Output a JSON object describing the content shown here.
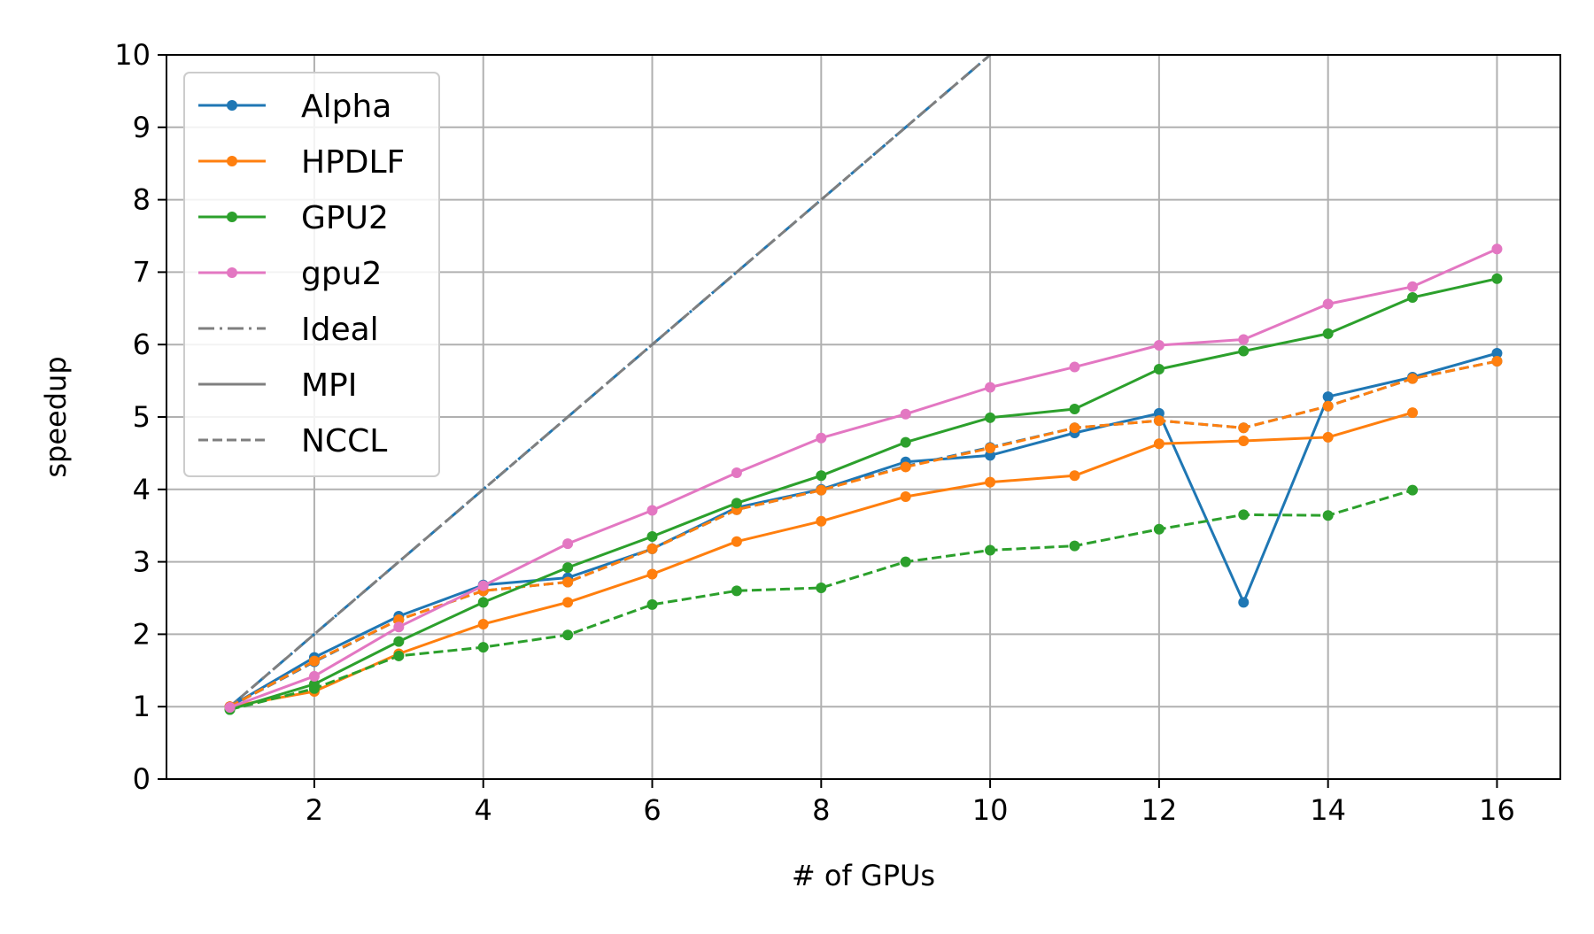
{
  "chart_data": {
    "type": "line",
    "title": "",
    "xlabel": "# of GPUs",
    "ylabel": "speedup",
    "xlim": [
      0.25,
      16.75
    ],
    "ylim": [
      0,
      10
    ],
    "xticks": [
      2,
      4,
      6,
      8,
      10,
      12,
      14,
      16
    ],
    "yticks": [
      0,
      1,
      2,
      3,
      4,
      5,
      6,
      7,
      8,
      9,
      10
    ],
    "grid": true,
    "legend_placement": "top-left",
    "colors": {
      "Alpha": "#1f77b4",
      "HPDLF": "#ff7f0e",
      "GPU2": "#2ca02c",
      "gpu2": "#e377c2",
      "reference": "#7f7f7f"
    },
    "legend": [
      {
        "name": "Alpha",
        "color": "#1f77b4",
        "style": "solid",
        "marker": true
      },
      {
        "name": "HPDLF",
        "color": "#ff7f0e",
        "style": "solid",
        "marker": true
      },
      {
        "name": "GPU2",
        "color": "#2ca02c",
        "style": "solid",
        "marker": true
      },
      {
        "name": "gpu2",
        "color": "#e377c2",
        "style": "solid",
        "marker": true
      },
      {
        "name": "Ideal",
        "color": "#7f7f7f",
        "style": "dashdot",
        "marker": false
      },
      {
        "name": "MPI",
        "color": "#7f7f7f",
        "style": "solid",
        "marker": false
      },
      {
        "name": "NCCL",
        "color": "#7f7f7f",
        "style": "dashed",
        "marker": false
      }
    ],
    "series": [
      {
        "name": "Ideal",
        "color": "#1f77b4",
        "style": "dashdot",
        "marker": false,
        "x": [
          1,
          10
        ],
        "y": [
          1,
          10
        ]
      },
      {
        "name": "Ideal",
        "color": "#7f7f7f",
        "style": "dashed",
        "marker": false,
        "x": [
          1,
          10
        ],
        "y": [
          1,
          10
        ]
      },
      {
        "name": "Alpha",
        "comm": "MPI",
        "color": "#1f77b4",
        "style": "solid",
        "marker": true,
        "x": [
          1,
          2,
          3,
          4,
          5,
          6,
          7,
          8,
          9,
          10,
          11,
          12,
          13,
          14,
          15,
          16
        ],
        "y": [
          1.0,
          1.68,
          2.25,
          2.68,
          2.78,
          3.18,
          3.75,
          4.0,
          4.38,
          4.47,
          4.78,
          5.05,
          2.44,
          5.28,
          5.55,
          5.88
        ]
      },
      {
        "name": "Alpha",
        "comm": "NCCL",
        "color": "#1f77b4",
        "style": "dashed",
        "marker": true,
        "x": [
          1,
          2,
          3,
          4,
          5,
          6,
          7,
          8,
          9,
          10,
          11,
          12,
          13,
          14,
          15,
          16
        ],
        "y": [
          1.0,
          1.62,
          2.2,
          2.6,
          2.72,
          3.18,
          3.72,
          3.99,
          4.32,
          4.58,
          4.85,
          4.95,
          4.85,
          5.15,
          5.53,
          5.77
        ]
      },
      {
        "name": "HPDLF",
        "comm": "MPI",
        "color": "#ff7f0e",
        "style": "solid",
        "marker": true,
        "x": [
          1,
          2,
          3,
          4,
          5,
          6,
          7,
          8,
          9,
          10,
          11,
          12,
          13,
          14,
          15
        ],
        "y": [
          1.0,
          1.21,
          1.73,
          2.14,
          2.44,
          2.83,
          3.28,
          3.56,
          3.9,
          4.1,
          4.19,
          4.63,
          4.67,
          4.72,
          5.06
        ]
      },
      {
        "name": "HPDLF",
        "comm": "NCCL",
        "color": "#ff7f0e",
        "style": "dashed",
        "marker": true,
        "x": [
          1,
          2,
          3,
          4,
          5,
          6,
          7,
          8,
          9,
          10,
          11,
          12,
          13,
          14,
          15,
          16
        ],
        "y": [
          1.0,
          1.63,
          2.2,
          2.6,
          2.72,
          3.18,
          3.72,
          3.99,
          4.31,
          4.57,
          4.85,
          4.95,
          4.85,
          5.15,
          5.53,
          5.77
        ]
      },
      {
        "name": "GPU2",
        "comm": "MPI",
        "color": "#2ca02c",
        "style": "solid",
        "marker": true,
        "x": [
          1,
          2,
          3,
          4,
          5,
          6,
          7,
          8,
          9,
          10,
          11,
          12,
          13,
          14,
          15,
          16
        ],
        "y": [
          0.96,
          1.31,
          1.9,
          2.44,
          2.92,
          3.35,
          3.81,
          4.19,
          4.65,
          4.99,
          5.11,
          5.66,
          5.91,
          6.15,
          6.65,
          6.91
        ]
      },
      {
        "name": "GPU2",
        "comm": "NCCL",
        "color": "#2ca02c",
        "style": "dashed",
        "marker": true,
        "x": [
          1,
          2,
          3,
          4,
          5,
          6,
          7,
          8,
          9,
          10,
          11,
          12,
          13,
          14,
          15
        ],
        "y": [
          0.96,
          1.25,
          1.7,
          1.82,
          1.99,
          2.41,
          2.6,
          2.64,
          3.0,
          3.16,
          3.22,
          3.45,
          3.65,
          3.64,
          3.99
        ]
      },
      {
        "name": "gpu2",
        "comm": "MPI",
        "color": "#e377c2",
        "style": "solid",
        "marker": true,
        "x": [
          1,
          2,
          3,
          4,
          5,
          6,
          7,
          8,
          9,
          10,
          11,
          12,
          13,
          14,
          15,
          16
        ],
        "y": [
          0.99,
          1.42,
          2.1,
          2.67,
          3.25,
          3.71,
          4.23,
          4.71,
          5.04,
          5.41,
          5.69,
          5.99,
          6.07,
          6.56,
          6.8,
          7.32
        ]
      }
    ]
  }
}
